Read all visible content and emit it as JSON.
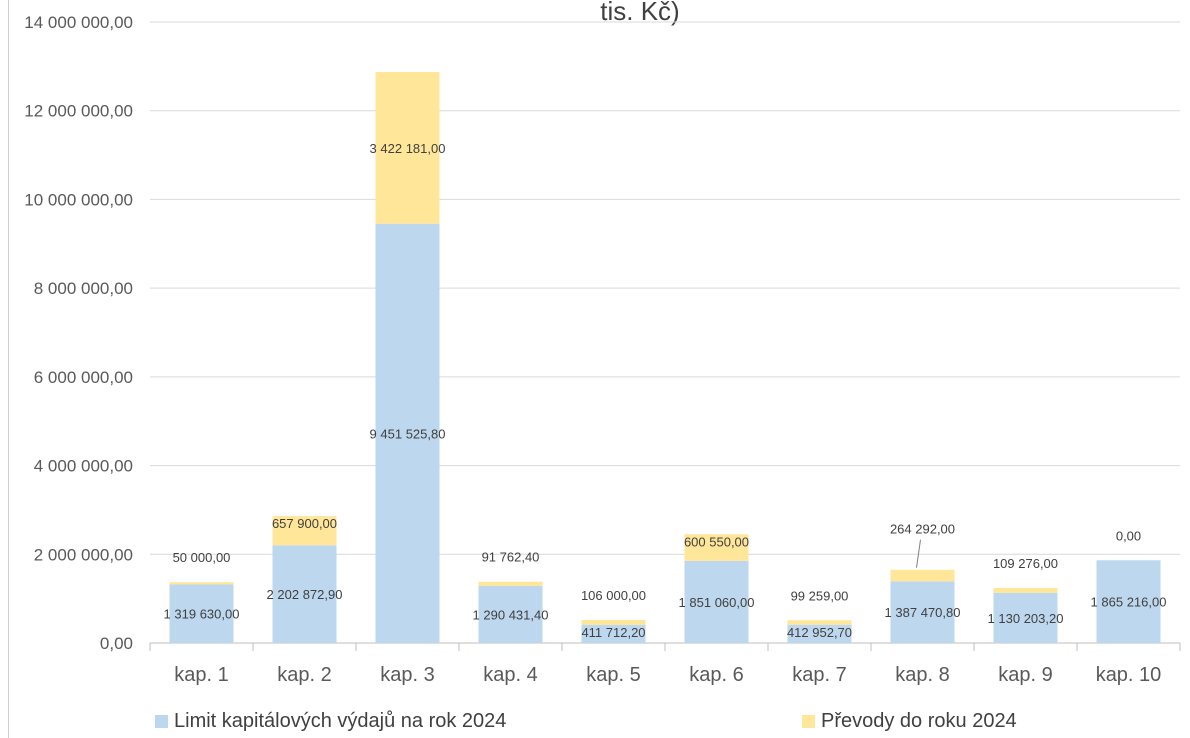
{
  "chart_data": {
    "type": "bar",
    "stacked": true,
    "title": "tis. Kč)",
    "categories": [
      "kap. 1",
      "kap. 2",
      "kap. 3",
      "kap. 4",
      "kap. 5",
      "kap. 6",
      "kap. 7",
      "kap. 8",
      "kap. 9",
      "kap. 10"
    ],
    "series": [
      {
        "name": "Limit kapitálových výdajů na rok 2024",
        "color": "#bdd7ee",
        "values": [
          1319630.0,
          2202872.9,
          9451525.8,
          1290431.4,
          411712.2,
          1851060.0,
          412952.7,
          1387470.8,
          1130203.2,
          1865216.0
        ],
        "labels": [
          "1 319 630,00",
          "2 202 872,90",
          "9 451 525,80",
          "1 290 431,40",
          "411 712,20",
          "1 851 060,00",
          "412 952,70",
          "1 387 470,80",
          "1 130 203,20",
          "1 865 216,00"
        ]
      },
      {
        "name": "Převody do roku 2024",
        "color": "#ffe699",
        "values": [
          50000.0,
          657900.0,
          3422181.0,
          91762.4,
          106000.0,
          600550.0,
          99259.0,
          264292.0,
          109276.0,
          0.0
        ],
        "labels": [
          "50 000,00",
          "657 900,00",
          "3 422 181,00",
          "91 762,40",
          "106 000,00",
          "600 550,00",
          "99 259,00",
          "264 292,00",
          "109 276,00",
          "0,00"
        ]
      }
    ],
    "ylim": [
      0,
      14000000
    ],
    "ytick_values": [
      0,
      2000000,
      4000000,
      6000000,
      8000000,
      10000000,
      12000000,
      14000000
    ],
    "ytick_labels": [
      "0,00",
      "2 000 000,00",
      "4 000 000,00",
      "6 000 000,00",
      "8 000 000,00",
      "10 000 000,00",
      "12 000 000,00",
      "14 000 000,00"
    ],
    "grid": true,
    "legend_position": "bottom"
  }
}
